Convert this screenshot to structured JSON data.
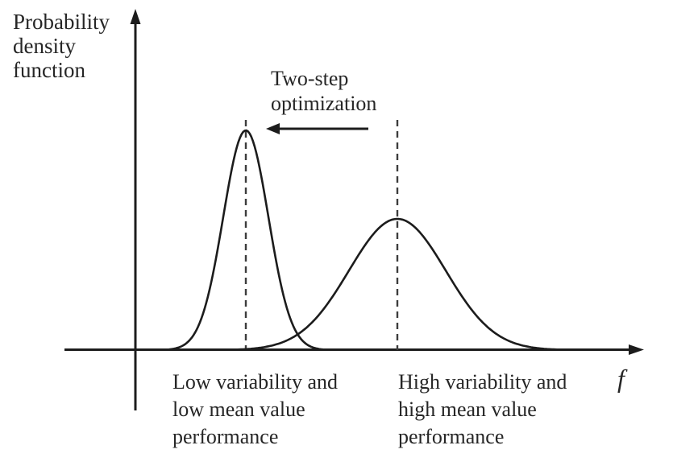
{
  "colors": {
    "background": "#ffffff",
    "ink": "#1c1c1c",
    "text": "#262626",
    "dashed_line": "#3d3d3d"
  },
  "axes": {
    "y_label": "Probability\ndensity\nfunction",
    "x_label": "f"
  },
  "annotation": {
    "text": "Two-step\noptimization",
    "arrow_direction": "left",
    "meaning": "shift from high-mean wide distribution toward low-mean narrow distribution"
  },
  "curves": [
    {
      "id": "low",
      "label": "Low variability and\nlow mean value\nperformance",
      "distribution": "normal",
      "mean": 305,
      "sigma": 28,
      "peak": 273,
      "dashed_mean_line": true
    },
    {
      "id": "high",
      "label": "High variability and\nhigh mean value\nperformance",
      "distribution": "normal",
      "mean": 493,
      "sigma": 60,
      "peak": 163,
      "dashed_mean_line": true
    }
  ]
}
